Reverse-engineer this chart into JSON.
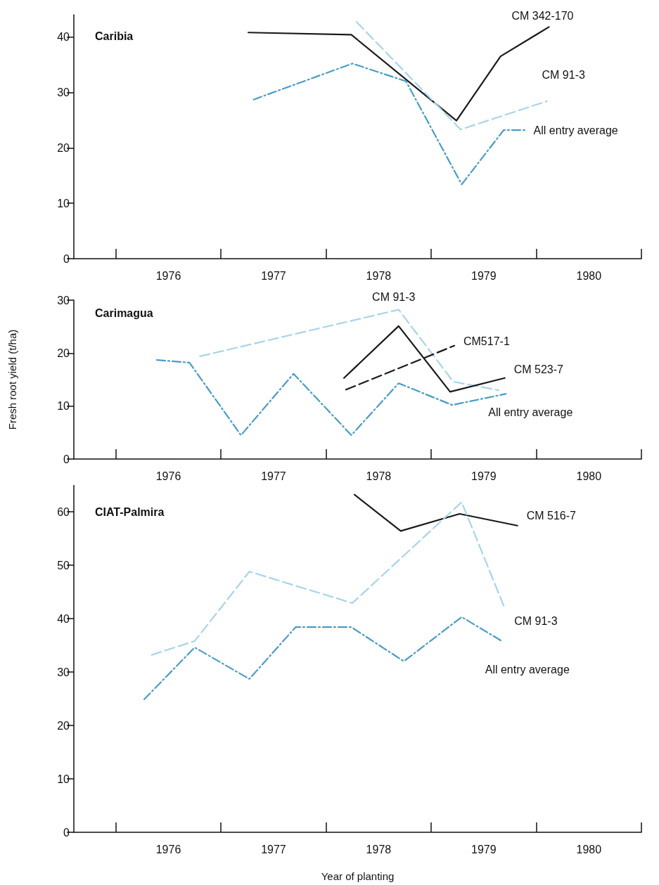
{
  "chart_data": [
    {
      "type": "line",
      "title": "Caribia",
      "xlim": [
        1975.1,
        1980.5
      ],
      "xticks": [
        {
          "value": 1975.5,
          "label": null
        },
        1976,
        {
          "value": 1976.5,
          "label": null
        },
        1977,
        {
          "value": 1977.5,
          "label": null
        },
        1978,
        {
          "value": 1978.5,
          "label": null
        },
        1979,
        {
          "value": 1979.5,
          "label": null
        },
        1980,
        {
          "value": 1980.5,
          "label": null
        }
      ],
      "ylim": [
        0,
        44
      ],
      "yticks": [
        0,
        10,
        20,
        30,
        40
      ],
      "grid": false,
      "legend": false,
      "marker": "none",
      "series": [
        {
          "name": "CM 342-170",
          "color": "#1a1a1a",
          "line_style": "solid",
          "x": [
            1976.76,
            1977.74,
            1978.74,
            1979.16,
            1979.62
          ],
          "values": [
            40.8,
            40.4,
            24.9,
            36.5,
            41.8
          ]
        },
        {
          "name": "CM 91-3",
          "color": "#a8d4ea",
          "line_style": "dashed",
          "x": [
            1977.79,
            1978.78,
            1979.6
          ],
          "values": [
            42.7,
            23.3,
            28.4
          ]
        },
        {
          "name": "All entry average",
          "color": "#4a9cc4",
          "line_style": "dashdot",
          "x": [
            1976.81,
            1977.75,
            1978.26,
            1978.79,
            1979.19,
            1979.4
          ],
          "values": [
            28.7,
            35.2,
            32.0,
            13.4,
            23.2,
            23.2
          ]
        }
      ]
    },
    {
      "type": "line",
      "title": "Carimagua",
      "ylabel": "Fresh root yield (t/ha)",
      "xlim": [
        1975.1,
        1980.5
      ],
      "xticks": [
        {
          "value": 1975.5,
          "label": null
        },
        1976,
        {
          "value": 1976.5,
          "label": null
        },
        1977,
        {
          "value": 1977.5,
          "label": null
        },
        1978,
        {
          "value": 1978.5,
          "label": null
        },
        1979,
        {
          "value": 1979.5,
          "label": null
        },
        1980,
        {
          "value": 1980.5,
          "label": null
        }
      ],
      "ylim": [
        0,
        30
      ],
      "yticks": [
        0,
        10,
        20,
        30
      ],
      "grid": false,
      "legend": false,
      "marker": "none",
      "series": [
        {
          "name": "CM 91-3",
          "color": "#a8d4ea",
          "line_style": "dashed",
          "x": [
            1976.3,
            1978.19,
            1978.71,
            1979.14
          ],
          "values": [
            19.4,
            28.2,
            14.6,
            13.0
          ]
        },
        {
          "name": "CM517-1",
          "color": "#1a1a1a",
          "line_style": "dashed",
          "x": [
            1977.69,
            1978.72
          ],
          "values": [
            13.1,
            21.4
          ]
        },
        {
          "name": "CM 523-7",
          "color": "#1a1a1a",
          "line_style": "solid",
          "x": [
            1977.67,
            1978.19,
            1978.68,
            1979.2
          ],
          "values": [
            15.3,
            25.1,
            12.7,
            15.3
          ]
        },
        {
          "name": "All entry average",
          "color": "#4a9cc4",
          "line_style": "dashdot",
          "x": [
            1975.89,
            1976.2,
            1976.69,
            1977.19,
            1977.74,
            1978.19,
            1978.7,
            1979.21
          ],
          "values": [
            18.7,
            18.2,
            4.5,
            16.1,
            4.5,
            14.3,
            10.2,
            12.3
          ]
        }
      ]
    },
    {
      "type": "line",
      "title": "CIAT-Palmira",
      "xlabel": "Year of planting",
      "xlim": [
        1975.1,
        1980.5
      ],
      "xticks": [
        {
          "value": 1975.5,
          "label": null
        },
        1976,
        {
          "value": 1976.5,
          "label": null
        },
        1977,
        {
          "value": 1977.5,
          "label": null
        },
        1978,
        {
          "value": 1978.5,
          "label": null
        },
        1979,
        {
          "value": 1979.5,
          "label": null
        },
        1980,
        {
          "value": 1980.5,
          "label": null
        }
      ],
      "ylim": [
        0,
        65
      ],
      "yticks": [
        0,
        10,
        20,
        30,
        40,
        50,
        60
      ],
      "grid": false,
      "legend": false,
      "marker": "none",
      "series": [
        {
          "name": "CM 516-7",
          "color": "#1a1a1a",
          "line_style": "solid",
          "x": [
            1977.77,
            1978.21,
            1978.77,
            1979.32
          ],
          "values": [
            63.2,
            56.4,
            59.6,
            57.4
          ]
        },
        {
          "name": "CM 91-3",
          "color": "#a8d4ea",
          "line_style": "dashed",
          "x": [
            1975.84,
            1976.25,
            1976.77,
            1977.75,
            1978.79,
            1979.19
          ],
          "values": [
            33.2,
            35.8,
            48.8,
            42.9,
            61.8,
            42.4
          ]
        },
        {
          "name": "All entry average",
          "color": "#4a9cc4",
          "line_style": "dashdot",
          "x": [
            1975.77,
            1976.25,
            1976.77,
            1977.21,
            1977.74,
            1978.24,
            1978.79,
            1979.18
          ],
          "values": [
            24.9,
            34.6,
            28.7,
            38.4,
            38.4,
            32.0,
            40.3,
            35.7
          ]
        }
      ]
    }
  ]
}
